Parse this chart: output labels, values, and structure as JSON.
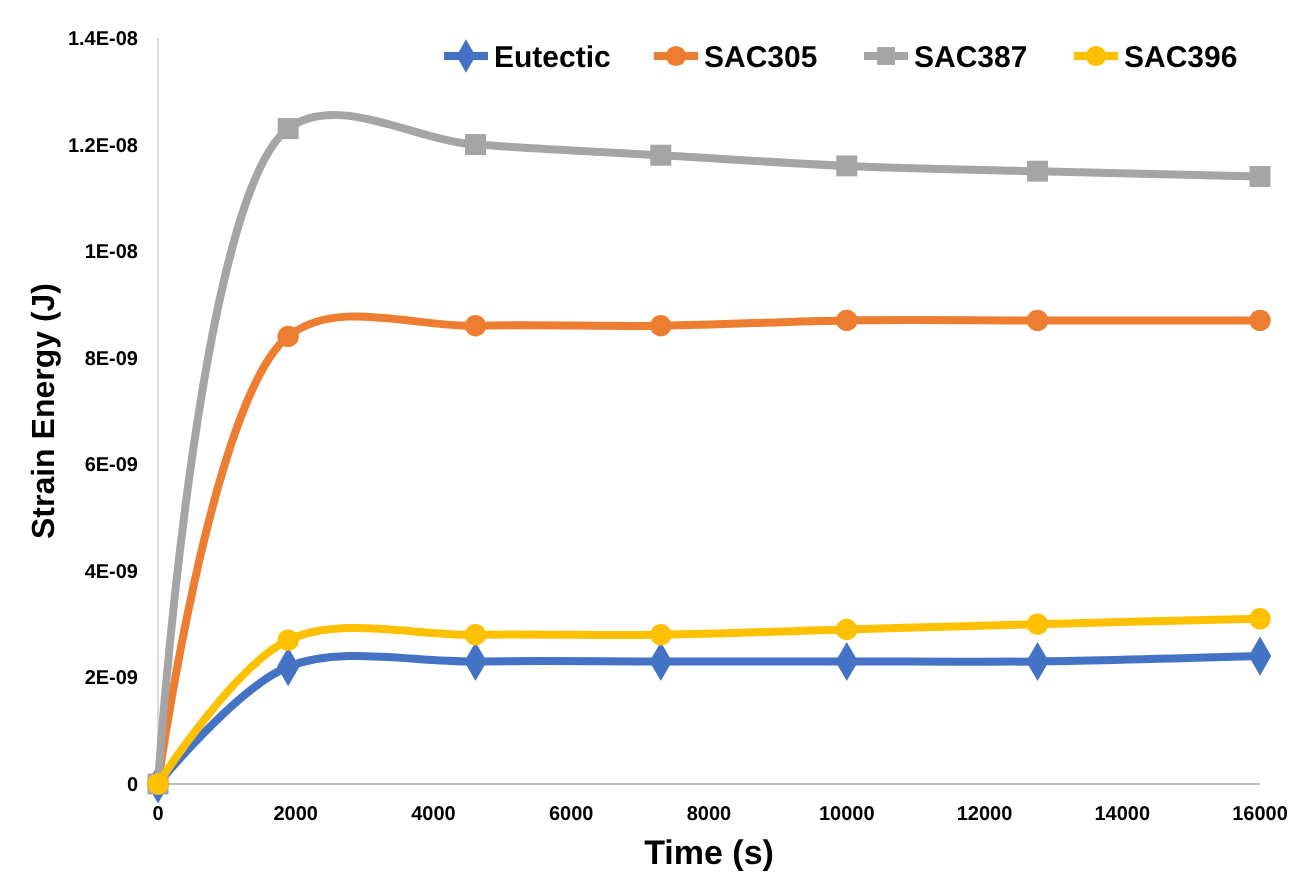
{
  "chart_data": {
    "type": "line",
    "xlabel": "Time (s)",
    "ylabel": "Strain Energy (J)",
    "x": [
      0,
      1890,
      4610,
      7300,
      10000,
      12770,
      16000
    ],
    "series": [
      {
        "name": "Eutectic",
        "color": "#4472c4",
        "marker": "diamond",
        "values": [
          0,
          2.2e-09,
          2.3e-09,
          2.3e-09,
          2.3e-09,
          2.3e-09,
          2.4e-09
        ]
      },
      {
        "name": "SAC305",
        "color": "#ed7d31",
        "marker": "circle",
        "values": [
          0,
          8.4e-09,
          8.6e-09,
          8.6e-09,
          8.7e-09,
          8.7e-09,
          8.7e-09
        ]
      },
      {
        "name": "SAC387",
        "color": "#a5a5a5",
        "marker": "square",
        "values": [
          0,
          1.23e-08,
          1.2e-08,
          1.18e-08,
          1.16e-08,
          1.15e-08,
          1.14e-08
        ]
      },
      {
        "name": "SAC396",
        "color": "#ffc000",
        "marker": "circle",
        "values": [
          0,
          2.7e-09,
          2.8e-09,
          2.8e-09,
          2.9e-09,
          3e-09,
          3.1e-09
        ]
      }
    ],
    "xlim": [
      0,
      16000
    ],
    "xticks": [
      0,
      2000,
      4000,
      6000,
      8000,
      10000,
      12000,
      14000,
      16000
    ],
    "ylim": [
      0,
      1.4e-08
    ],
    "yticks": [
      0,
      {
        "value": 2e-09,
        "label": "2E-09"
      },
      {
        "value": 4e-09,
        "label": "4E-09"
      },
      {
        "value": 6e-09,
        "label": "6E-09"
      },
      {
        "value": 8e-09,
        "label": "8E-09"
      },
      {
        "value": 1e-08,
        "label": "1E-08"
      },
      {
        "value": 1.2e-08,
        "label": "1.2E-08"
      },
      {
        "value": 1.4e-08,
        "label": "1.4E-08"
      }
    ],
    "legend": "top",
    "line_style": "solid"
  }
}
